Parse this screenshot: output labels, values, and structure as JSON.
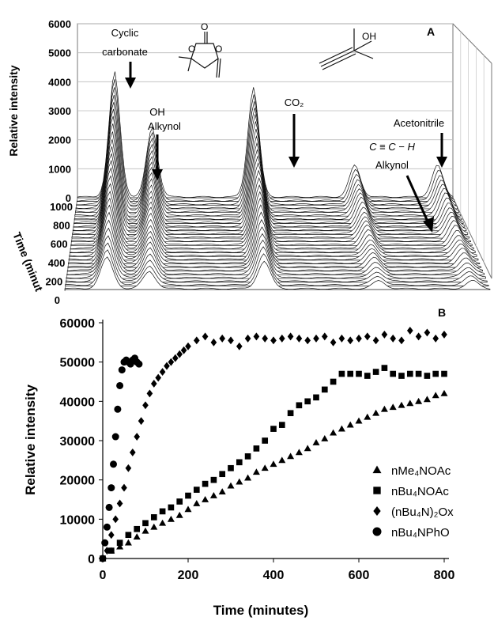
{
  "chart_data": [
    {
      "panel_label": "A",
      "type": "area",
      "ylabel": "Relative intensity",
      "zlabel": "Time (minut",
      "yticks": [
        0,
        1000,
        2000,
        3000,
        4000,
        5000,
        6000
      ],
      "ylim": [
        0,
        6000
      ],
      "zticks": [
        0,
        200,
        400,
        600,
        800,
        1000
      ],
      "annotations": {
        "cyclic_line1": "Cyclic",
        "cyclic_line2": "carbonate",
        "oh_line1": "OH",
        "oh_line2": "Alkynol",
        "co2": "CO₂",
        "acetonitrile": "Acetonitrile",
        "alkyne_line1": "C ≡ C − H",
        "alkyne_line2": "Alkynol"
      },
      "peaks": [
        {
          "position": 0.1,
          "max": 4300
        },
        {
          "position": 0.2,
          "max": 2400
        },
        {
          "position": 0.47,
          "max": 3800
        },
        {
          "position": 0.74,
          "max": 1100
        },
        {
          "position": 0.96,
          "max": 1100
        }
      ]
    },
    {
      "panel_label": "B",
      "type": "scatter",
      "xlabel": "Time (minutes)",
      "ylabel": "Relative intensity",
      "xlim": [
        0,
        800
      ],
      "ylim": [
        0,
        60000
      ],
      "xticks": [
        0,
        200,
        400,
        600,
        800
      ],
      "yticks": [
        0,
        10000,
        20000,
        30000,
        40000,
        50000,
        60000
      ],
      "legend_position": "bottom-right",
      "series": [
        {
          "name": "nMe₄NOAc",
          "marker": "triangle",
          "x": [
            0,
            20,
            40,
            60,
            80,
            100,
            120,
            140,
            160,
            180,
            200,
            220,
            240,
            260,
            280,
            300,
            320,
            340,
            360,
            380,
            400,
            420,
            440,
            460,
            480,
            500,
            520,
            540,
            560,
            580,
            600,
            620,
            640,
            660,
            680,
            700,
            720,
            740,
            760,
            780,
            800
          ],
          "y": [
            0,
            2000,
            3000,
            4000,
            5500,
            7000,
            8000,
            9000,
            10000,
            11000,
            12500,
            14000,
            15000,
            16000,
            17000,
            18500,
            19500,
            20500,
            22000,
            23000,
            24000,
            25000,
            26000,
            27000,
            28000,
            29500,
            30500,
            32000,
            33000,
            34000,
            35000,
            36000,
            37000,
            38000,
            38500,
            39000,
            39500,
            40000,
            40500,
            41500,
            42000
          ]
        },
        {
          "name": "nBu₄NOAc",
          "marker": "square",
          "x": [
            0,
            20,
            40,
            60,
            80,
            100,
            120,
            140,
            160,
            180,
            200,
            220,
            240,
            260,
            280,
            300,
            320,
            340,
            360,
            380,
            400,
            420,
            440,
            460,
            480,
            500,
            520,
            540,
            560,
            580,
            600,
            620,
            640,
            660,
            680,
            700,
            720,
            740,
            760,
            780,
            800
          ],
          "y": [
            0,
            2000,
            4000,
            6000,
            7500,
            9000,
            10500,
            12000,
            13000,
            14500,
            16000,
            17500,
            19000,
            20000,
            21500,
            23000,
            24500,
            26000,
            28000,
            30000,
            33000,
            34000,
            37000,
            39000,
            40000,
            41000,
            43000,
            45000,
            47000,
            47000,
            47000,
            46500,
            47500,
            48500,
            47000,
            46500,
            47000,
            47000,
            46500,
            47000,
            47000
          ]
        },
        {
          "name": "(nBu₄N)₂Ox",
          "marker": "diamond",
          "x": [
            0,
            10,
            20,
            30,
            40,
            50,
            60,
            70,
            80,
            90,
            100,
            110,
            120,
            130,
            140,
            150,
            160,
            170,
            180,
            190,
            200,
            220,
            240,
            260,
            280,
            300,
            320,
            340,
            360,
            380,
            400,
            420,
            440,
            460,
            480,
            500,
            520,
            540,
            560,
            580,
            600,
            620,
            640,
            660,
            680,
            700,
            720,
            740,
            760,
            780,
            800
          ],
          "y": [
            0,
            2000,
            6000,
            10000,
            14000,
            18000,
            23000,
            27000,
            31000,
            35000,
            39000,
            42000,
            44500,
            46000,
            47500,
            49000,
            50000,
            51000,
            52000,
            53000,
            54000,
            55500,
            56500,
            55000,
            56000,
            55500,
            54000,
            56000,
            56500,
            56000,
            55500,
            56000,
            56500,
            56000,
            55500,
            56000,
            56500,
            55000,
            56000,
            55500,
            56000,
            56500,
            55500,
            57000,
            56000,
            55500,
            58000,
            56500,
            57500,
            56000,
            57000
          ]
        },
        {
          "name": "nBu₄NPhO",
          "marker": "circle",
          "x": [
            0,
            5,
            10,
            15,
            20,
            25,
            30,
            35,
            40,
            45,
            50,
            55,
            60,
            65,
            70,
            75,
            80,
            85
          ],
          "y": [
            0,
            4000,
            8000,
            13000,
            18000,
            24000,
            31000,
            38000,
            44000,
            48000,
            50000,
            50500,
            50000,
            49500,
            50500,
            51000,
            50000,
            49500
          ]
        }
      ]
    }
  ]
}
